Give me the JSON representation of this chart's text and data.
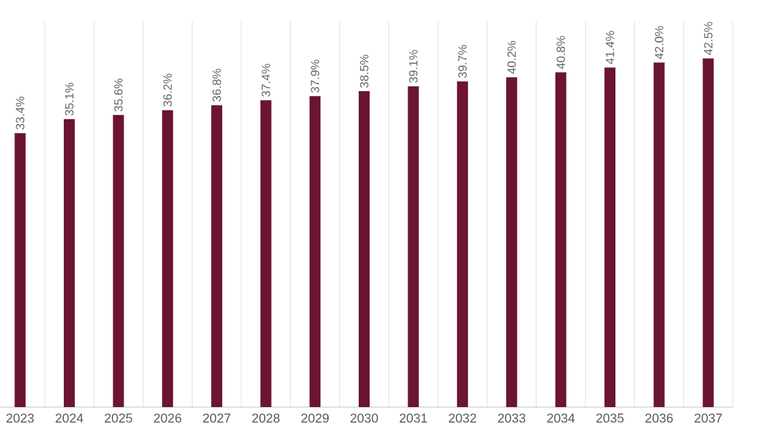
{
  "chart_data": {
    "type": "bar",
    "categories": [
      "2023",
      "2024",
      "2025",
      "2026",
      "2027",
      "2028",
      "2029",
      "2030",
      "2031",
      "2032",
      "2033",
      "2034",
      "2035",
      "2036",
      "2037"
    ],
    "values": [
      33.4,
      35.1,
      35.6,
      36.2,
      36.8,
      37.4,
      37.9,
      38.5,
      39.1,
      39.7,
      40.2,
      40.8,
      41.4,
      42.0,
      42.5
    ],
    "value_labels": [
      "33.4%",
      "35.1%",
      "35.6%",
      "36.2%",
      "36.8%",
      "37.4%",
      "37.9%",
      "38.5%",
      "39.1%",
      "39.7%",
      "40.2%",
      "40.8%",
      "41.4%",
      "42.0%",
      "42.5%"
    ],
    "color": "#6b1530",
    "ylim": [
      0,
      47
    ],
    "grid": "x"
  }
}
